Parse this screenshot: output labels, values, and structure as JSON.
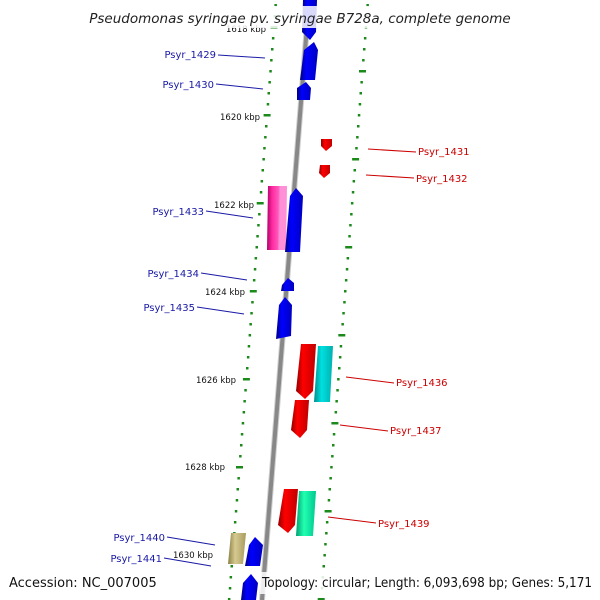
{
  "title": "Pseudomonas syringae pv. syringae B728a, complete genome",
  "footer": {
    "accession": "Accession: NC_007005",
    "topology": "Topology: circular; Length: 6,093,698 bp; Genes: 5,171"
  },
  "kbp_labels": [
    {
      "text": "1618 kbp",
      "pos": 1618
    },
    {
      "text": "1620 kbp",
      "pos": 1620
    },
    {
      "text": "1622 kbp",
      "pos": 1622
    },
    {
      "text": "1624 kbp",
      "pos": 1624
    },
    {
      "text": "1626 kbp",
      "pos": 1626
    },
    {
      "text": "1628 kbp",
      "pos": 1628
    },
    {
      "text": "1630 kbp",
      "pos": 1630
    }
  ],
  "genes": [
    {
      "label": "Psyr_1429",
      "strand": "-",
      "color": "#0000ee"
    },
    {
      "label": "Psyr_1430",
      "strand": "-",
      "color": "#0000ee"
    },
    {
      "label": "Psyr_1431",
      "strand": "+",
      "color": "#ee0000"
    },
    {
      "label": "Psyr_1432",
      "strand": "+",
      "color": "#ee0000"
    },
    {
      "label": "Psyr_1433",
      "strand": "-",
      "color": "#ff1493"
    },
    {
      "label": "Psyr_1434",
      "strand": "-",
      "color": "#0000ee"
    },
    {
      "label": "Psyr_1435",
      "strand": "-",
      "color": "#0000ee"
    },
    {
      "label": "Psyr_1436",
      "strand": "+",
      "color": "#00c8c8"
    },
    {
      "label": "Psyr_1437",
      "strand": "+",
      "color": "#ee0000"
    },
    {
      "label": "Psyr_1439",
      "strand": "+",
      "color": "#00e6a0"
    },
    {
      "label": "Psyr_1440",
      "strand": "-",
      "color": "#b5a86a"
    },
    {
      "label": "Psyr_1441",
      "strand": "-",
      "color": "#0000ee"
    }
  ],
  "colors": {
    "backbone": "#8a8a8a",
    "tick": "#1b8a1b",
    "label_blue": "#1a1aa6",
    "label_red": "#cc0000"
  }
}
